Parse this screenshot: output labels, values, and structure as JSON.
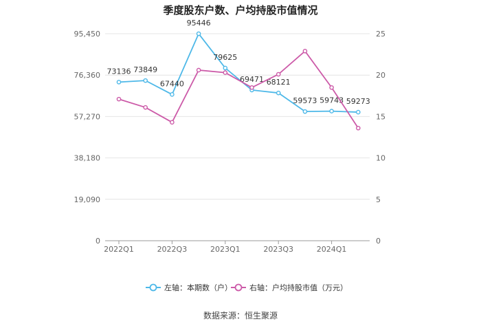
{
  "title": "季度股东户数、户均持股市值情况",
  "source": "数据来源：恒生聚源",
  "chart_data": {
    "type": "line",
    "x": [
      "2022Q1",
      "2022Q2",
      "2022Q3",
      "2022Q4",
      "2023Q1",
      "2023Q2",
      "2023Q3",
      "2023Q4",
      "2024Q1",
      "2024Q2"
    ],
    "x_tick_labels": [
      "2022Q1",
      "2022Q3",
      "2023Q1",
      "2023Q3",
      "2024Q1"
    ],
    "y_left": {
      "ticks": [
        0,
        19090,
        38180,
        57270,
        76360,
        95450
      ],
      "tick_labels": [
        "0",
        "19,090",
        "38,180",
        "57,270",
        "76,360",
        "95,450"
      ],
      "lim": [
        0,
        95450
      ]
    },
    "y_right": {
      "ticks": [
        0,
        5,
        10,
        15,
        20,
        25
      ],
      "tick_labels": [
        "0",
        "5",
        "10",
        "15",
        "20",
        "25"
      ],
      "lim": [
        0,
        25
      ]
    },
    "series": [
      {
        "name": "左轴：本期数（户）",
        "axis": "left",
        "color": "#4db8e8",
        "values": [
          73136,
          73849,
          67440,
          95446,
          79625,
          69471,
          68121,
          59573,
          59743,
          59273
        ],
        "labels": [
          "73136",
          "73849",
          "67440",
          "95446",
          "79625",
          "69471",
          "68121",
          "59573",
          "59743",
          "59273"
        ]
      },
      {
        "name": "右轴：户均持股市值（万元）",
        "axis": "right",
        "color": "#cc5aa8",
        "values": [
          17.1,
          16.1,
          14.3,
          20.6,
          20.3,
          18.5,
          20.1,
          22.9,
          18.5,
          13.6
        ]
      }
    ],
    "legend_position": "bottom",
    "grid": true
  }
}
